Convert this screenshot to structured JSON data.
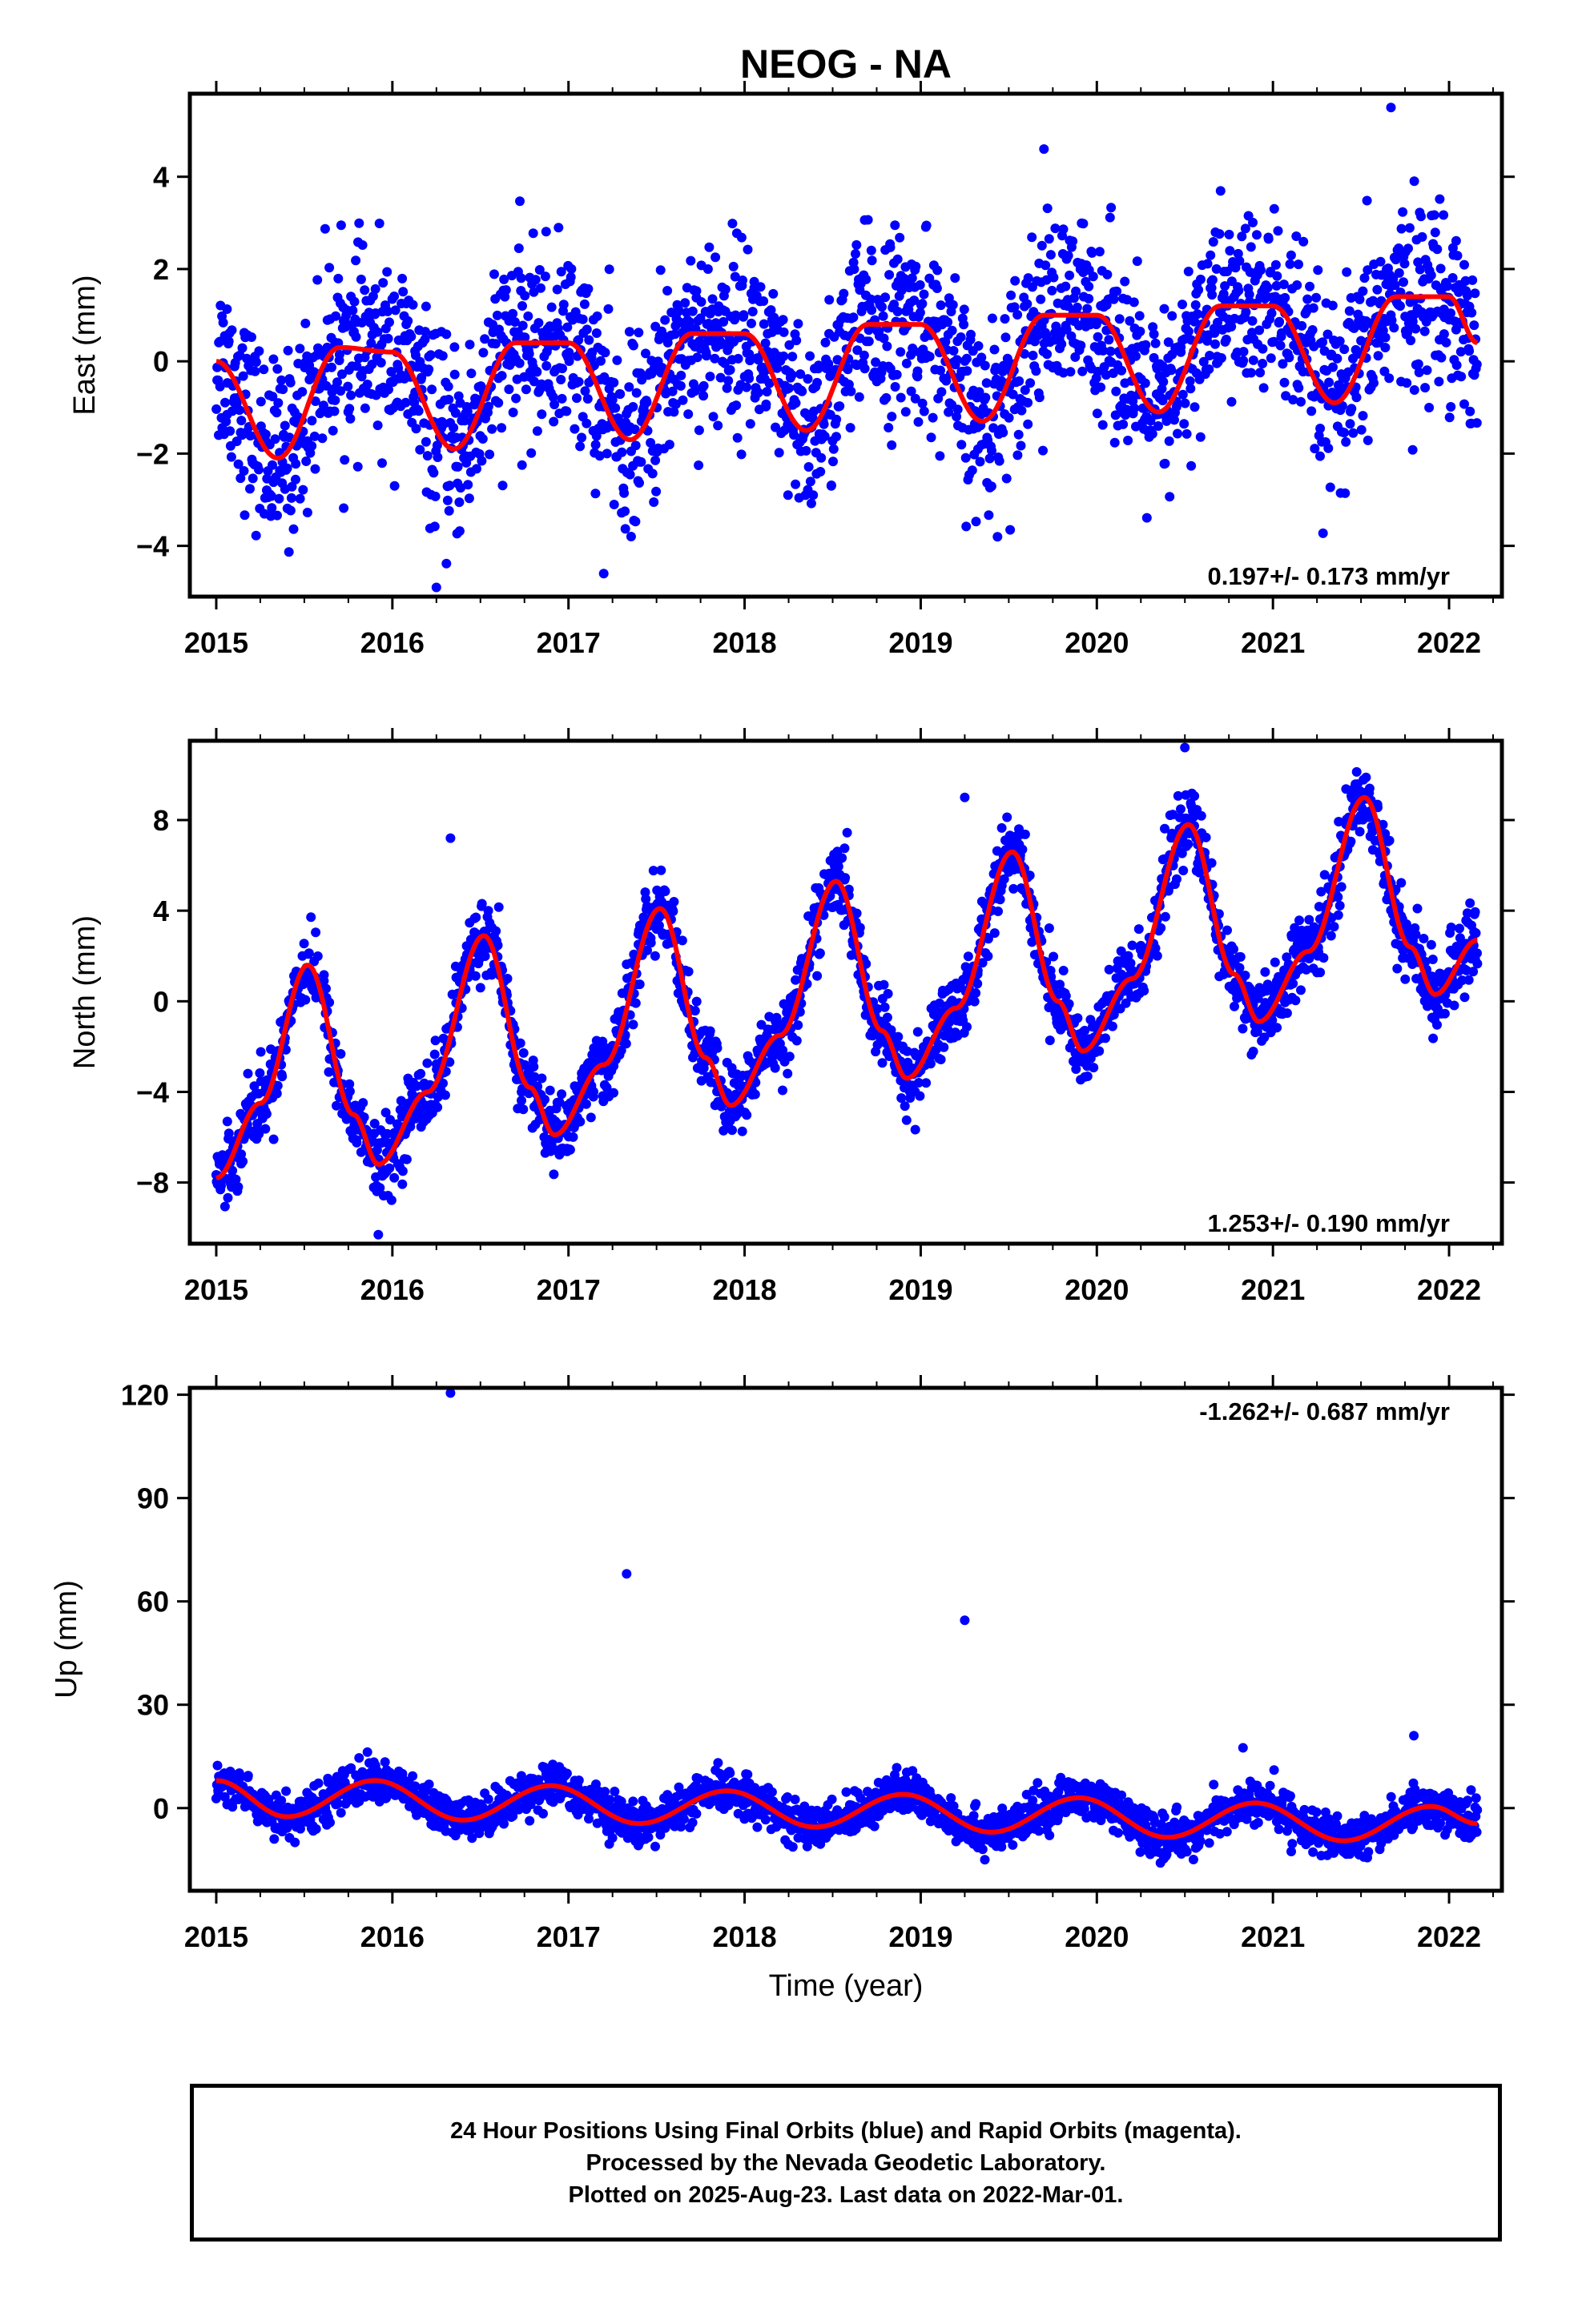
{
  "title": "NEOG - NA",
  "footer": {
    "line1": "24 Hour Positions Using Final Orbits (blue) and Rapid Orbits (magenta).",
    "line2": "Processed by the Nevada Geodetic Laboratory.",
    "line3": "Plotted on 2025-Aug-23. Last data on 2022-Mar-01."
  },
  "colors": {
    "points": "#0000ff",
    "fit": "#ff0000",
    "axes": "#000000"
  },
  "chart_data": [
    {
      "type": "scatter",
      "panel": "east",
      "ylabel": "East (mm)",
      "xlabel": "",
      "xlim": [
        2014.85,
        2022.3
      ],
      "ylim": [
        -5.1,
        5.8
      ],
      "xticks": [
        "2015",
        "2016",
        "2017",
        "2018",
        "2019",
        "2020",
        "2021",
        "2022"
      ],
      "yticks": [
        4,
        2,
        0,
        -2,
        -4
      ],
      "ytick_labels": [
        "4",
        "2",
        "0",
        "−2",
        "−4"
      ],
      "rate_label": "0.197+/- 0.173 mm/yr",
      "rate_position": "bottom-right",
      "series": [
        {
          "kind": "points",
          "x_range": [
            2015.0,
            2022.16
          ],
          "trend_mm_per_yr": 0.197,
          "seasonal_profile_x": [
            2015.0,
            2015.35,
            2015.7,
            2016.0,
            2016.35,
            2016.7,
            2017.0,
            2017.35,
            2017.7,
            2018.0,
            2018.35,
            2018.7,
            2019.0,
            2019.35,
            2019.7,
            2020.0,
            2020.35,
            2020.7,
            2021.0,
            2021.35,
            2021.7,
            2022.0,
            2022.16
          ],
          "seasonal_profile_y": [
            0.0,
            -2.1,
            0.3,
            0.2,
            -1.9,
            0.4,
            0.4,
            -1.7,
            0.6,
            0.6,
            -1.5,
            0.8,
            0.8,
            -1.3,
            1.0,
            1.0,
            -1.1,
            1.2,
            1.2,
            -0.9,
            1.4,
            1.4,
            0.4
          ],
          "scatter_mm": 1.0,
          "outliers": [
            {
              "x": 2021.67,
              "y": 5.5
            },
            {
              "x": 2016.25,
              "y": -4.9
            },
            {
              "x": 2017.2,
              "y": -4.6
            },
            {
              "x": 2019.7,
              "y": 4.6
            }
          ]
        },
        {
          "kind": "fit",
          "x": [
            2015.0,
            2015.35,
            2015.7,
            2016.0,
            2016.35,
            2016.7,
            2017.0,
            2017.35,
            2017.7,
            2018.0,
            2018.35,
            2018.7,
            2019.0,
            2019.35,
            2019.7,
            2020.0,
            2020.35,
            2020.7,
            2021.0,
            2021.35,
            2021.7,
            2022.0,
            2022.16
          ],
          "y": [
            0.0,
            -2.1,
            0.3,
            0.2,
            -1.9,
            0.4,
            0.4,
            -1.7,
            0.6,
            0.6,
            -1.5,
            0.8,
            0.8,
            -1.3,
            1.0,
            1.0,
            -1.1,
            1.2,
            1.2,
            -0.9,
            1.4,
            1.4,
            0.4
          ]
        }
      ]
    },
    {
      "type": "scatter",
      "panel": "north",
      "ylabel": "North (mm)",
      "xlabel": "",
      "xlim": [
        2014.85,
        2022.3
      ],
      "ylim": [
        -10.7,
        11.5
      ],
      "xticks": [
        "2015",
        "2016",
        "2017",
        "2018",
        "2019",
        "2020",
        "2021",
        "2022"
      ],
      "yticks": [
        8,
        4,
        0,
        -4,
        -8
      ],
      "ytick_labels": [
        "8",
        "4",
        "0",
        "−4",
        "−8"
      ],
      "rate_label": "1.253+/- 0.190 mm/yr",
      "rate_position": "bottom-right",
      "series": [
        {
          "kind": "points",
          "x_range": [
            2015.0,
            2022.16
          ],
          "trend_mm_per_yr": 1.253,
          "scatter_mm": 0.8,
          "outliers": [
            {
              "x": 2016.33,
              "y": 7.2
            },
            {
              "x": 2019.25,
              "y": 9.0
            },
            {
              "x": 2020.5,
              "y": 11.2
            },
            {
              "x": 2015.92,
              "y": -10.3
            }
          ]
        },
        {
          "kind": "fit",
          "x": [
            2015.0,
            2015.25,
            2015.52,
            2015.78,
            2015.92,
            2016.2,
            2016.52,
            2016.78,
            2016.92,
            2017.2,
            2017.52,
            2017.78,
            2017.92,
            2018.2,
            2018.52,
            2018.78,
            2018.92,
            2019.2,
            2019.52,
            2019.78,
            2019.92,
            2020.2,
            2020.52,
            2020.78,
            2020.92,
            2021.2,
            2021.52,
            2021.78,
            2021.92,
            2022.16
          ],
          "y": [
            -7.8,
            -4.5,
            1.6,
            -5.0,
            -7.2,
            -4.0,
            2.9,
            -3.8,
            -5.9,
            -2.8,
            4.1,
            -2.5,
            -4.6,
            -1.5,
            5.3,
            -1.3,
            -3.4,
            -0.3,
            6.6,
            0.0,
            -2.2,
            1.0,
            7.8,
            1.2,
            -0.9,
            2.2,
            9.0,
            2.4,
            0.3,
            2.7
          ]
        }
      ]
    },
    {
      "type": "scatter",
      "panel": "up",
      "ylabel": "Up (mm)",
      "xlabel": "Time (year)",
      "xlim": [
        2014.85,
        2022.3
      ],
      "ylim": [
        -24,
        122
      ],
      "xticks": [
        "2015",
        "2016",
        "2017",
        "2018",
        "2019",
        "2020",
        "2021",
        "2022"
      ],
      "yticks": [
        120,
        90,
        60,
        30,
        0
      ],
      "ytick_labels": [
        "120",
        "90",
        "60",
        "30",
        "0"
      ],
      "rate_label": "-1.262+/- 0.687 mm/yr",
      "rate_position": "top-right",
      "series": [
        {
          "kind": "points",
          "x_range": [
            2015.0,
            2022.16
          ],
          "trend_mm_per_yr": -1.262,
          "scatter_mm": 3.0,
          "outliers": [
            {
              "x": 2016.33,
              "y": 120.5
            },
            {
              "x": 2017.33,
              "y": 68.0
            },
            {
              "x": 2019.25,
              "y": 54.5
            },
            {
              "x": 2021.8,
              "y": 21.0
            },
            {
              "x": 2020.83,
              "y": 17.5
            }
          ]
        },
        {
          "kind": "fit",
          "x": [
            2015.0,
            2015.4,
            2015.9,
            2016.4,
            2016.9,
            2017.4,
            2017.9,
            2018.4,
            2018.9,
            2019.4,
            2019.9,
            2020.4,
            2020.9,
            2021.4,
            2021.9,
            2022.16
          ],
          "y": [
            8.0,
            -2.5,
            8.0,
            -3.5,
            6.5,
            -4.5,
            5.0,
            -5.5,
            4.0,
            -7.0,
            3.0,
            -8.5,
            1.5,
            -9.5,
            0.5,
            -4.5
          ]
        }
      ]
    }
  ]
}
